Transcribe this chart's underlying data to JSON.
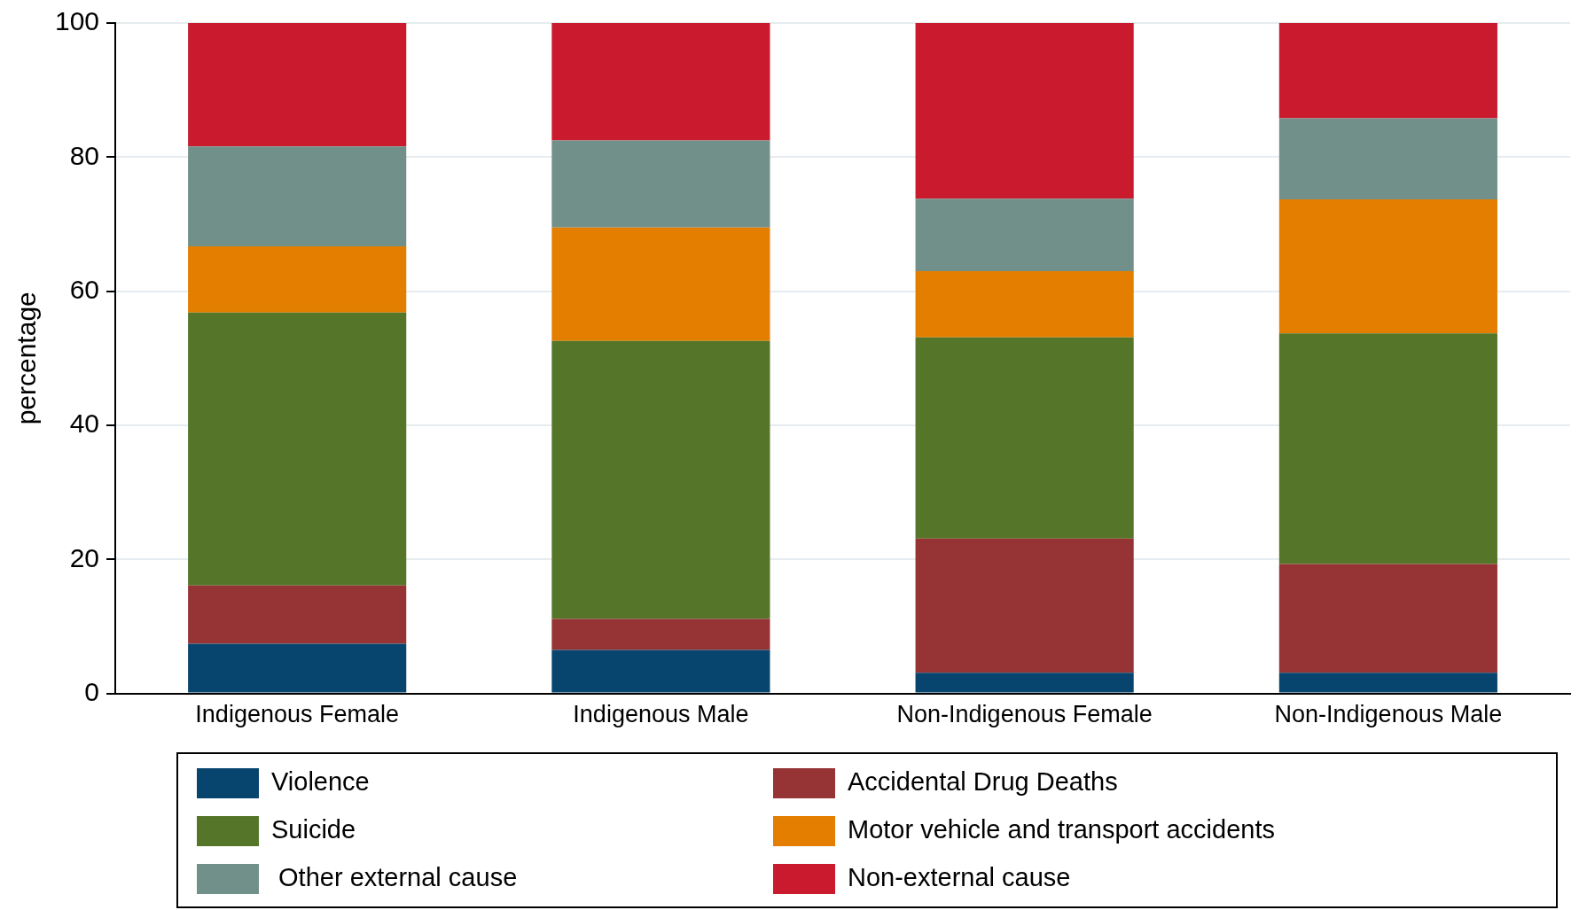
{
  "chart_data": {
    "type": "bar",
    "stacked": true,
    "ylabel": "percentage",
    "categories": [
      "Indigenous Female",
      "Indigenous Male",
      "Non-Indigenous Female",
      "Non-Indigenous Male"
    ],
    "series": [
      {
        "name": "Violence",
        "color": "#08456e",
        "values": [
          7.4,
          6.5,
          3.1,
          3.1
        ]
      },
      {
        "name": "Accidental Drug Deaths",
        "color": "#953335",
        "values": [
          8.7,
          4.6,
          20.0,
          16.2
        ]
      },
      {
        "name": "Suicide",
        "color": "#557629",
        "values": [
          40.7,
          41.5,
          30.0,
          34.4
        ]
      },
      {
        "name": "Motor vehicle and transport accidents",
        "color": "#e37e00",
        "values": [
          9.9,
          16.9,
          9.9,
          20.0
        ]
      },
      {
        "name": " Other external cause",
        "color": "#72908a",
        "values": [
          14.9,
          13.0,
          10.8,
          12.1
        ]
      },
      {
        "name": "Non-external cause",
        "color": "#c91a2e",
        "values": [
          18.4,
          17.5,
          26.2,
          14.2
        ]
      }
    ],
    "ylim": [
      0,
      100
    ],
    "yticks": [
      0,
      20,
      40,
      60,
      80,
      100
    ],
    "grid": "y",
    "legend": "bottom"
  }
}
